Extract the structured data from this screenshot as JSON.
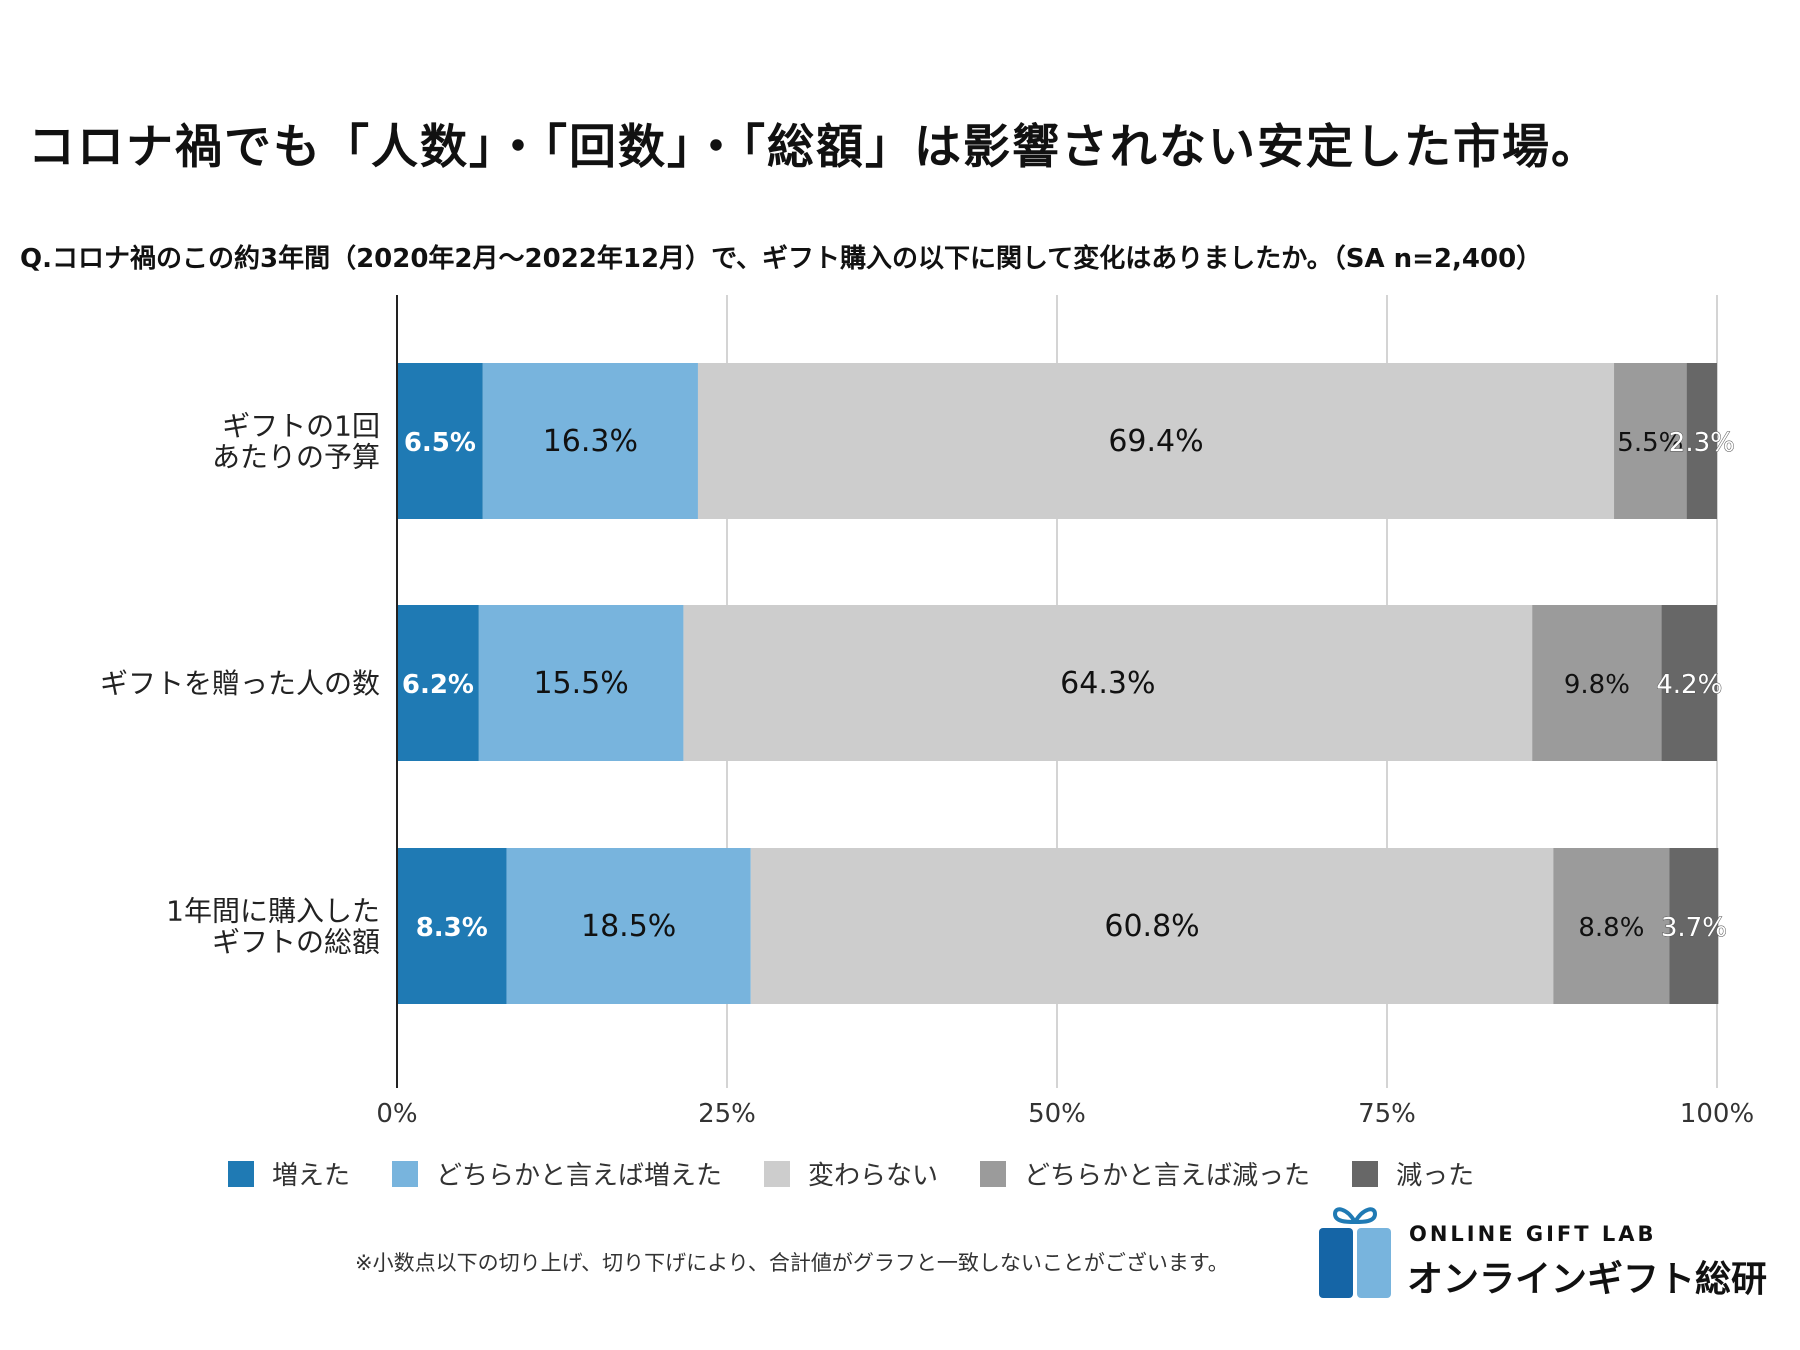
{
  "headline": "コロナ禍でも「人数」・「回数」・「総額」は影響されない安定した市場。",
  "question": "Q.コロナ禍のこの約3年間（2020年2月〜2022年12月）で、ギフト購入の以下に関して変化はありましたか。（SA n=2,400）",
  "note": "※小数点以下の切り上げ、切り下げにより、合計値がグラフと一致しないことがございます。",
  "logo": {
    "en": "ONLINE GIFT LAB",
    "ja": "オンラインギフト総研"
  },
  "chart_data": {
    "type": "bar",
    "orientation": "horizontal-stacked",
    "title": "",
    "xlabel": "",
    "ylabel": "",
    "xlim": [
      0,
      100
    ],
    "x_ticks": [
      "0%",
      "25%",
      "50%",
      "75%",
      "100%"
    ],
    "x_tick_values": [
      0,
      25,
      50,
      75,
      100
    ],
    "grid": true,
    "legend_position": "bottom",
    "categories": [
      [
        "ギフトの1回",
        "あたりの予算"
      ],
      [
        "ギフトを贈った人の数"
      ],
      [
        "1年間に購入した",
        "ギフトの総額"
      ]
    ],
    "series": [
      {
        "name": "増えた",
        "color": "#1f7ab4",
        "label_color": "#ffffff",
        "values": [
          6.5,
          6.2,
          8.3
        ],
        "labels": [
          "6.5%",
          "6.2%",
          "8.3%"
        ]
      },
      {
        "name": "どちらかと言えば増えた",
        "color": "#78b4dd",
        "label_color": "#111111",
        "values": [
          16.3,
          15.5,
          18.5
        ],
        "labels": [
          "16.3%",
          "15.5%",
          "18.5%"
        ]
      },
      {
        "name": "変わらない",
        "color": "#cdcdcd",
        "label_color": "#111111",
        "values": [
          69.4,
          64.3,
          60.8
        ],
        "labels": [
          "69.4%",
          "64.3%",
          "60.8%"
        ]
      },
      {
        "name": "どちらかと言えば減った",
        "color": "#9b9b9b",
        "label_color": "#111111",
        "values": [
          5.5,
          9.8,
          8.8
        ],
        "labels": [
          "5.5%",
          "9.8%",
          "8.8%"
        ]
      },
      {
        "name": "減った",
        "color": "#676767",
        "label_color": "#ffffff",
        "values": [
          2.3,
          4.2,
          3.7
        ],
        "labels": [
          "2.3%",
          "4.2%",
          "3.7%"
        ]
      }
    ]
  }
}
